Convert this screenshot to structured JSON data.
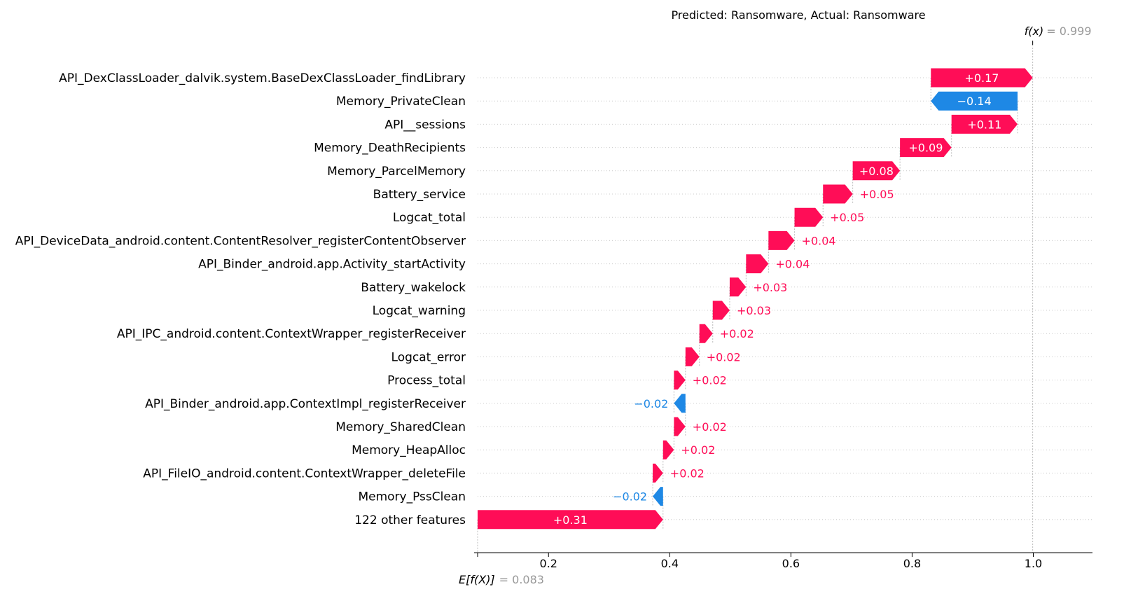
{
  "chart_data": {
    "type": "waterfall",
    "title": "Predicted: Ransomware, Actual: Ransomware",
    "base_value": 0.083,
    "final_value": 0.999,
    "base_label": "E[f(X)]",
    "base_value_label": "= 0.083",
    "final_label": "f(x)",
    "final_value_label": "= 0.999",
    "xlim": [
      0.083,
      1.1
    ],
    "xticks": [
      0.2,
      0.4,
      0.6,
      0.8,
      1.0
    ],
    "xtick_labels": [
      "0.2",
      "0.4",
      "0.6",
      "0.8",
      "1.0"
    ],
    "positive_color": "#ff0d57",
    "negative_color": "#1e88e5",
    "features": [
      {
        "name": "API_DexClassLoader_dalvik.system.BaseDexClassLoader_findLibrary",
        "start": 0.831,
        "end": 0.999,
        "label": "+0.17"
      },
      {
        "name": "Memory_PrivateClean",
        "start": 0.974,
        "end": 0.831,
        "label": "−0.14"
      },
      {
        "name": "API__sessions",
        "start": 0.865,
        "end": 0.974,
        "label": "+0.11"
      },
      {
        "name": "Memory_DeathRecipients",
        "start": 0.78,
        "end": 0.865,
        "label": "+0.09"
      },
      {
        "name": "Memory_ParcelMemory",
        "start": 0.702,
        "end": 0.78,
        "label": "+0.08"
      },
      {
        "name": "Battery_service",
        "start": 0.653,
        "end": 0.702,
        "label": "+0.05"
      },
      {
        "name": "Logcat_total",
        "start": 0.606,
        "end": 0.653,
        "label": "+0.05"
      },
      {
        "name": "API_DeviceData_android.content.ContentResolver_registerContentObserver",
        "start": 0.563,
        "end": 0.606,
        "label": "+0.04"
      },
      {
        "name": "API_Binder_android.app.Activity_startActivity",
        "start": 0.526,
        "end": 0.563,
        "label": "+0.04"
      },
      {
        "name": "Battery_wakelock",
        "start": 0.499,
        "end": 0.526,
        "label": "+0.03"
      },
      {
        "name": "Logcat_warning",
        "start": 0.471,
        "end": 0.499,
        "label": "+0.03"
      },
      {
        "name": "API_IPC_android.content.ContextWrapper_registerReceiver",
        "start": 0.449,
        "end": 0.471,
        "label": "+0.02"
      },
      {
        "name": "Logcat_error",
        "start": 0.426,
        "end": 0.449,
        "label": "+0.02"
      },
      {
        "name": "Process_total",
        "start": 0.407,
        "end": 0.426,
        "label": "+0.02"
      },
      {
        "name": "API_Binder_android.app.ContextImpl_registerReceiver",
        "start": 0.426,
        "end": 0.407,
        "label": "−0.02"
      },
      {
        "name": "Memory_SharedClean",
        "start": 0.407,
        "end": 0.426,
        "label": "+0.02"
      },
      {
        "name": "Memory_HeapAlloc",
        "start": 0.389,
        "end": 0.407,
        "label": "+0.02"
      },
      {
        "name": "API_FileIO_android.content.ContextWrapper_deleteFile",
        "start": 0.372,
        "end": 0.389,
        "label": "+0.02"
      },
      {
        "name": "Memory_PssClean",
        "start": 0.389,
        "end": 0.372,
        "label": "−0.02"
      },
      {
        "name": "122 other features",
        "start": 0.083,
        "end": 0.389,
        "label": "+0.31"
      }
    ]
  }
}
